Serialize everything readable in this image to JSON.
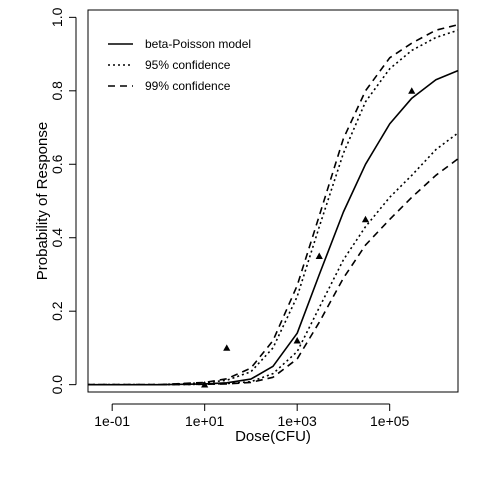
{
  "chart_data": {
    "type": "line",
    "xlabel": "Dose(CFU)",
    "ylabel": "Probability of Response",
    "x_scale": "log10",
    "xlim": [
      0.03,
      3000000
    ],
    "ylim": [
      -0.02,
      1.02
    ],
    "x_ticks": [
      {
        "value": 0.1,
        "label": "1e-01"
      },
      {
        "value": 10,
        "label": "1e+01"
      },
      {
        "value": 1000,
        "label": "1e+03"
      },
      {
        "value": 100000,
        "label": "1e+05"
      }
    ],
    "y_ticks": [
      {
        "value": 0.0,
        "label": "0.0"
      },
      {
        "value": 0.2,
        "label": "0.2"
      },
      {
        "value": 0.4,
        "label": "0.4"
      },
      {
        "value": 0.6,
        "label": "0.6"
      },
      {
        "value": 0.8,
        "label": "0.8"
      },
      {
        "value": 1.0,
        "label": "1.0"
      }
    ],
    "legend": {
      "placement": "top-left",
      "entries": [
        {
          "label": "beta-Poisson model",
          "dash": "solid"
        },
        {
          "label": "95% confidence",
          "dash": "dotted"
        },
        {
          "label": "99% confidence",
          "dash": "dashed"
        }
      ]
    },
    "series": [
      {
        "name": "beta-Poisson model",
        "dash": "solid",
        "x": [
          0.03,
          1,
          10,
          30,
          100,
          300,
          1000,
          3000,
          10000,
          30000,
          100000,
          300000,
          1000000,
          3000000
        ],
        "y": [
          0,
          0,
          0.002,
          0.005,
          0.015,
          0.05,
          0.14,
          0.3,
          0.47,
          0.6,
          0.71,
          0.78,
          0.83,
          0.855
        ]
      },
      {
        "name": "95% confidence",
        "dash": "dotted",
        "x": [
          0.03,
          1,
          10,
          30,
          100,
          300,
          1000,
          3000,
          10000,
          30000,
          100000,
          300000,
          1000000,
          3000000
        ],
        "y": [
          0,
          0,
          0.005,
          0.012,
          0.035,
          0.1,
          0.24,
          0.43,
          0.63,
          0.77,
          0.86,
          0.91,
          0.945,
          0.965
        ]
      },
      {
        "dash": "dotted",
        "x": [
          0.03,
          1,
          10,
          30,
          100,
          300,
          1000,
          3000,
          10000,
          30000,
          100000,
          300000,
          1000000,
          3000000
        ],
        "y": [
          0,
          0,
          0.001,
          0.003,
          0.008,
          0.03,
          0.09,
          0.21,
          0.34,
          0.43,
          0.51,
          0.57,
          0.64,
          0.685
        ]
      },
      {
        "name": "99% confidence",
        "dash": "dashed",
        "x": [
          0.03,
          1,
          10,
          30,
          100,
          300,
          1000,
          3000,
          10000,
          30000,
          100000,
          300000,
          1000000,
          3000000
        ],
        "y": [
          0,
          0,
          0.006,
          0.016,
          0.045,
          0.12,
          0.27,
          0.46,
          0.67,
          0.8,
          0.89,
          0.93,
          0.965,
          0.98
        ]
      },
      {
        "dash": "dashed",
        "x": [
          0.03,
          1,
          10,
          30,
          100,
          300,
          1000,
          3000,
          10000,
          30000,
          100000,
          300000,
          1000000,
          3000000
        ],
        "y": [
          0,
          0,
          0.001,
          0.002,
          0.006,
          0.02,
          0.07,
          0.17,
          0.29,
          0.38,
          0.45,
          0.51,
          0.57,
          0.615
        ]
      }
    ],
    "points": {
      "marker": "filled-triangle",
      "x": [
        10,
        30,
        1000,
        3000,
        30000,
        300000
      ],
      "y": [
        0,
        0.1,
        0.12,
        0.35,
        0.45,
        0.8
      ]
    }
  }
}
